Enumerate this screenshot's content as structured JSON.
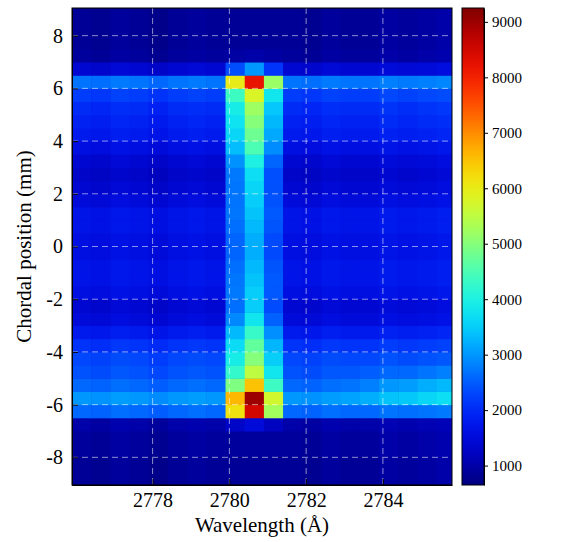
{
  "chart_data": {
    "type": "heatmap",
    "x_label": "Wavelength (Å)",
    "y_label": "Chordal position (mm)",
    "x": [
      2776.15,
      2776.65,
      2777.15,
      2777.65,
      2778.15,
      2778.65,
      2779.15,
      2779.65,
      2780.15,
      2780.65,
      2781.15,
      2781.65,
      2782.15,
      2782.65,
      2783.15,
      2783.65,
      2784.15,
      2784.65,
      2785.15,
      2785.65
    ],
    "y": [
      -8.75,
      -8.25,
      -7.75,
      -7.25,
      -6.75,
      -6.25,
      -5.75,
      -5.25,
      -4.75,
      -4.25,
      -3.75,
      -3.25,
      -2.75,
      -2.25,
      -1.75,
      -1.25,
      -0.75,
      -0.25,
      0.25,
      0.75,
      1.25,
      1.75,
      2.25,
      2.75,
      3.25,
      3.75,
      4.25,
      4.75,
      5.25,
      5.75,
      6.25,
      6.75,
      7.25,
      7.75,
      8.25,
      8.75
    ],
    "z": [
      [
        850,
        800,
        900,
        850,
        750,
        850,
        900,
        850,
        850,
        850,
        850,
        850,
        800,
        900,
        850,
        850,
        950,
        900,
        950,
        1000
      ],
      [
        850,
        800,
        900,
        850,
        750,
        850,
        900,
        850,
        850,
        850,
        850,
        850,
        800,
        900,
        850,
        850,
        950,
        900,
        950,
        1000
      ],
      [
        900,
        850,
        950,
        900,
        800,
        900,
        950,
        900,
        900,
        900,
        900,
        900,
        850,
        950,
        900,
        900,
        1000,
        950,
        1000,
        1050
      ],
      [
        900,
        850,
        950,
        900,
        800,
        900,
        950,
        900,
        900,
        900,
        900,
        900,
        850,
        950,
        900,
        900,
        1000,
        950,
        1000,
        1050
      ],
      [
        1000,
        950,
        1050,
        1000,
        900,
        1000,
        1050,
        1000,
        1300,
        1500,
        1225,
        1000,
        950,
        1050,
        1000,
        1000,
        1100,
        1050,
        1100,
        1150
      ],
      [
        2600,
        2550,
        2650,
        2600,
        2500,
        2600,
        2650,
        2600,
        6140,
        8500,
        5255,
        2600,
        2550,
        2650,
        2600,
        2600,
        2700,
        2650,
        2700,
        2750
      ],
      [
        3000,
        2950,
        3050,
        3000,
        2900,
        3000,
        3050,
        3000,
        6600,
        9000,
        5700,
        3000,
        2950,
        3050,
        3100,
        3200,
        3400,
        3450,
        3600,
        3700
      ],
      [
        2600,
        2550,
        2650,
        2600,
        2500,
        2600,
        2650,
        2600,
        4940,
        6500,
        4355,
        2600,
        2550,
        2650,
        2700,
        2800,
        3000,
        3050,
        3200,
        3300
      ],
      [
        2400,
        2350,
        2450,
        2400,
        2300,
        2400,
        2450,
        2400,
        4260,
        5500,
        3795,
        2400,
        2350,
        2450,
        2450,
        2500,
        2600,
        2600,
        2700,
        2800
      ],
      [
        2300,
        2250,
        2350,
        2300,
        2200,
        2300,
        2350,
        2300,
        3920,
        5000,
        3515,
        2300,
        2250,
        2350,
        2300,
        2300,
        2400,
        2350,
        2400,
        2450
      ],
      [
        2100,
        2050,
        2150,
        2100,
        2000,
        2100,
        2150,
        2100,
        3660,
        4700,
        3270,
        2100,
        2050,
        2150,
        2100,
        2100,
        2200,
        2150,
        2200,
        2250
      ],
      [
        1800,
        1750,
        1850,
        1800,
        1700,
        1800,
        1850,
        1800,
        3300,
        4300,
        2925,
        1800,
        1750,
        1850,
        1800,
        1800,
        1900,
        1850,
        1900,
        1950
      ],
      [
        1500,
        1450,
        1550,
        1500,
        1400,
        1500,
        1550,
        1500,
        2880,
        3800,
        2535,
        1500,
        1450,
        1550,
        1500,
        1500,
        1600,
        1550,
        1600,
        1650
      ],
      [
        1400,
        1350,
        1450,
        1400,
        1300,
        1400,
        1450,
        1400,
        2660,
        3500,
        2345,
        1400,
        1350,
        1450,
        1400,
        1400,
        1500,
        1450,
        1500,
        1550
      ],
      [
        1600,
        1550,
        1650,
        1600,
        1500,
        1600,
        1650,
        1600,
        2740,
        3500,
        2455,
        1600,
        1550,
        1650,
        1600,
        1600,
        1700,
        1650,
        1700,
        1750
      ],
      [
        1700,
        1650,
        1750,
        1700,
        1600,
        1700,
        1750,
        1700,
        2720,
        3400,
        2465,
        1700,
        1650,
        1750,
        1700,
        1700,
        1800,
        1750,
        1800,
        1850
      ],
      [
        1700,
        1650,
        1750,
        1700,
        1600,
        1700,
        1750,
        1700,
        2660,
        3300,
        2420,
        1700,
        1650,
        1750,
        1700,
        1700,
        1800,
        1750,
        1800,
        1850
      ],
      [
        1600,
        1550,
        1650,
        1600,
        1500,
        1600,
        1650,
        1600,
        2560,
        3200,
        2320,
        1600,
        1550,
        1650,
        1600,
        1600,
        1700,
        1650,
        1700,
        1750
      ],
      [
        1600,
        1550,
        1650,
        1600,
        1500,
        1600,
        1650,
        1600,
        2560,
        3200,
        2320,
        1600,
        1550,
        1650,
        1600,
        1600,
        1700,
        1650,
        1700,
        1750
      ],
      [
        1700,
        1650,
        1750,
        1700,
        1600,
        1700,
        1750,
        1700,
        2660,
        3300,
        2420,
        1700,
        1650,
        1750,
        1700,
        1700,
        1800,
        1750,
        1800,
        1850
      ],
      [
        1700,
        1650,
        1750,
        1700,
        1600,
        1700,
        1750,
        1700,
        2720,
        3400,
        2465,
        1700,
        1650,
        1750,
        1700,
        1700,
        1800,
        1750,
        1800,
        1850
      ],
      [
        1500,
        1450,
        1550,
        1500,
        1400,
        1500,
        1550,
        1500,
        2700,
        3500,
        2400,
        1500,
        1450,
        1550,
        1500,
        1500,
        1600,
        1550,
        1600,
        1650
      ],
      [
        1400,
        1350,
        1450,
        1400,
        1300,
        1400,
        1450,
        1400,
        2720,
        3600,
        2390,
        1400,
        1350,
        1450,
        1400,
        1400,
        1500,
        1450,
        1500,
        1550
      ],
      [
        1300,
        1250,
        1350,
        1300,
        1200,
        1300,
        1350,
        1300,
        2740,
        3700,
        2380,
        1300,
        1250,
        1350,
        1300,
        1300,
        1400,
        1350,
        1400,
        1450
      ],
      [
        1400,
        1350,
        1450,
        1400,
        1300,
        1400,
        1450,
        1400,
        2960,
        4000,
        2570,
        1400,
        1350,
        1450,
        1400,
        1400,
        1500,
        1450,
        1500,
        1550
      ],
      [
        1600,
        1550,
        1650,
        1600,
        1500,
        1600,
        1650,
        1600,
        3340,
        4500,
        2905,
        1600,
        1550,
        1650,
        1600,
        1600,
        1700,
        1650,
        1700,
        1750
      ],
      [
        1800,
        1750,
        1850,
        1800,
        1700,
        1800,
        1850,
        1800,
        3600,
        4800,
        3150,
        1800,
        1750,
        1850,
        1800,
        1800,
        1900,
        1850,
        1900,
        1950
      ],
      [
        1900,
        1850,
        1950,
        1900,
        1800,
        1900,
        1950,
        1900,
        3760,
        5000,
        3295,
        1900,
        1850,
        1950,
        1900,
        1900,
        2000,
        1950,
        2000,
        2050
      ],
      [
        2000,
        1950,
        2050,
        2000,
        1900,
        2000,
        2050,
        2000,
        3920,
        5200,
        3440,
        2000,
        1950,
        2050,
        2000,
        2000,
        2100,
        2050,
        2100,
        2150
      ],
      [
        2200,
        2150,
        2250,
        2200,
        2100,
        2200,
        2250,
        2200,
        4360,
        5800,
        3820,
        2200,
        2150,
        2250,
        2200,
        2200,
        2300,
        2250,
        2300,
        2350
      ],
      [
        2700,
        2650,
        2750,
        2700,
        2600,
        2700,
        2750,
        2700,
        6000,
        8200,
        5175,
        2700,
        2650,
        2750,
        2700,
        2700,
        2800,
        2750,
        2800,
        2850
      ],
      [
        1400,
        1350,
        1450,
        1400,
        1300,
        1400,
        1450,
        1400,
        2360,
        3000,
        2120,
        1400,
        1350,
        1450,
        1400,
        1400,
        1500,
        1450,
        1500,
        1550
      ],
      [
        900,
        850,
        950,
        900,
        800,
        900,
        950,
        900,
        960,
        1000,
        945,
        900,
        850,
        950,
        900,
        900,
        1000,
        950,
        1000,
        1050
      ],
      [
        850,
        800,
        900,
        850,
        750,
        850,
        900,
        850,
        850,
        850,
        850,
        850,
        800,
        900,
        850,
        850,
        950,
        900,
        950,
        1000
      ],
      [
        850,
        800,
        900,
        850,
        750,
        850,
        900,
        850,
        850,
        850,
        850,
        850,
        800,
        900,
        850,
        850,
        950,
        900,
        950,
        1000
      ],
      [
        850,
        800,
        900,
        850,
        750,
        850,
        900,
        850,
        850,
        850,
        850,
        850,
        800,
        900,
        850,
        850,
        950,
        900,
        950,
        1000
      ]
    ],
    "xlim": [
      2775.9,
      2785.8
    ],
    "ylim": [
      -9.05,
      9.05
    ],
    "xticks": [
      2778,
      2780,
      2782,
      2784
    ],
    "yticks": [
      -8,
      -6,
      -4,
      -2,
      0,
      2,
      4,
      6,
      8
    ],
    "grid": true,
    "color": "jet",
    "colorbar": {
      "range": [
        650,
        9250
      ],
      "ticks": [
        1000,
        2000,
        3000,
        4000,
        5000,
        6000,
        7000,
        8000,
        9000
      ]
    }
  }
}
